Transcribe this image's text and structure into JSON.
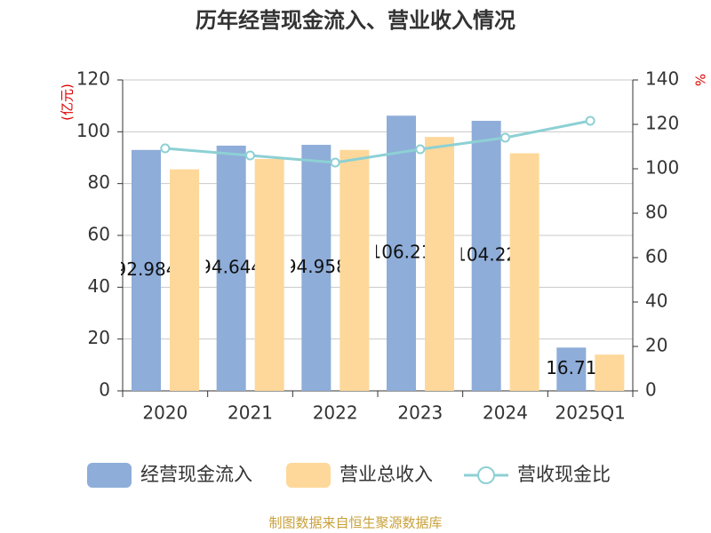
{
  "chart_data": {
    "type": "bar",
    "title": "历年经营现金流入、营业收入情况",
    "ylabel": "(亿元)",
    "y2label": "%",
    "categories": [
      "2020",
      "2021",
      "2022",
      "2023",
      "2024",
      "2025Q1"
    ],
    "series": [
      {
        "name": "经营现金流入",
        "color": "#8eadd9",
        "values": [
          92.984,
          94.644,
          94.958,
          106.21,
          104.22,
          16.71
        ],
        "show_labels": true
      },
      {
        "name": "营业总收入",
        "color": "#fed89a",
        "values": [
          85.5,
          89.5,
          93,
          98,
          91.7,
          14
        ]
      },
      {
        "name": "营收现金比",
        "color": "#8dd0d4",
        "type": "line",
        "axis": "y2",
        "values": [
          109.2,
          106,
          102.8,
          108.8,
          114,
          121.6
        ]
      }
    ],
    "ylim": [
      0,
      120
    ],
    "yticks": [
      0,
      20,
      40,
      60,
      80,
      100,
      120
    ],
    "y2lim": [
      0,
      140
    ],
    "y2ticks": [
      0,
      20,
      40,
      60,
      80,
      100,
      120,
      140
    ],
    "grid": true,
    "legend": "bottom",
    "source": "制图数据来自恒生聚源数据库"
  }
}
